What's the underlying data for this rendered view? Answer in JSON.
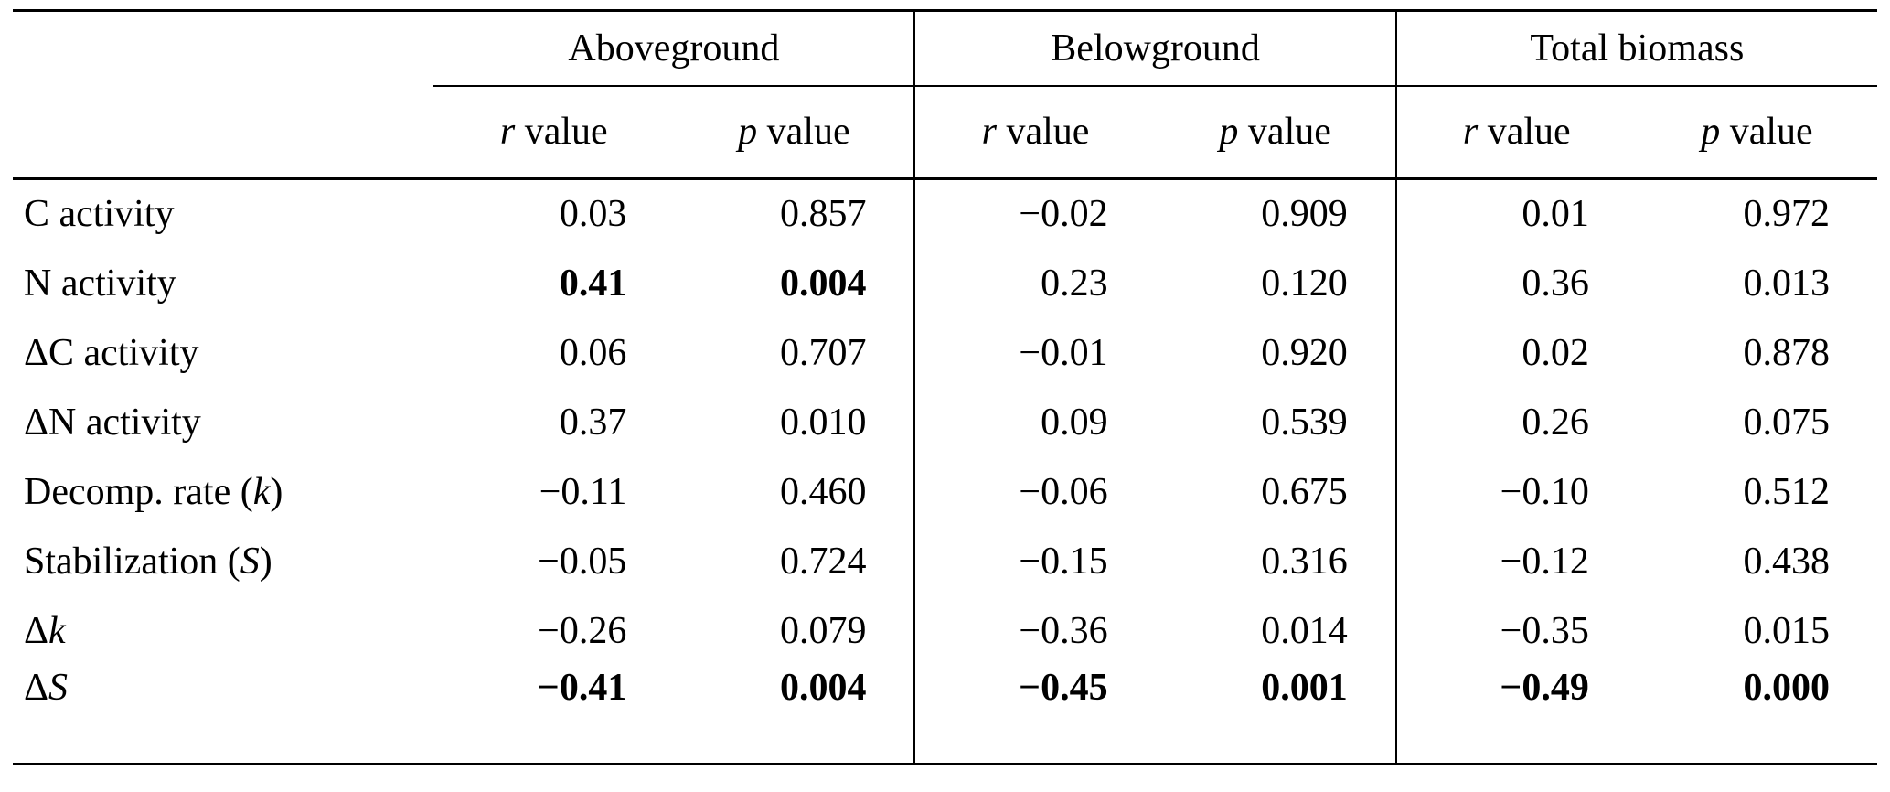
{
  "table": {
    "groups": [
      {
        "label": "Aboveground"
      },
      {
        "label": "Belowground"
      },
      {
        "label": "Total biomass"
      }
    ],
    "subheader": {
      "r": {
        "symbol": "r",
        "rest": " value"
      },
      "p": {
        "symbol": "p",
        "rest": " value"
      }
    },
    "rows": [
      {
        "label_parts": [
          {
            "t": "C activity",
            "i": false
          }
        ],
        "values": [
          {
            "v": "0.03",
            "b": false
          },
          {
            "v": "0.857",
            "b": false
          },
          {
            "v": "−0.02",
            "b": false
          },
          {
            "v": "0.909",
            "b": false
          },
          {
            "v": "0.01",
            "b": false
          },
          {
            "v": "0.972",
            "b": false
          }
        ]
      },
      {
        "label_parts": [
          {
            "t": "N activity",
            "i": false
          }
        ],
        "values": [
          {
            "v": "0.41",
            "b": true
          },
          {
            "v": "0.004",
            "b": true
          },
          {
            "v": "0.23",
            "b": false
          },
          {
            "v": "0.120",
            "b": false
          },
          {
            "v": "0.36",
            "b": false
          },
          {
            "v": "0.013",
            "b": false
          }
        ]
      },
      {
        "label_parts": [
          {
            "t": "ΔC activity",
            "i": false
          }
        ],
        "values": [
          {
            "v": "0.06",
            "b": false
          },
          {
            "v": "0.707",
            "b": false
          },
          {
            "v": "−0.01",
            "b": false
          },
          {
            "v": "0.920",
            "b": false
          },
          {
            "v": "0.02",
            "b": false
          },
          {
            "v": "0.878",
            "b": false
          }
        ]
      },
      {
        "label_parts": [
          {
            "t": "ΔN activity",
            "i": false
          }
        ],
        "values": [
          {
            "v": "0.37",
            "b": false
          },
          {
            "v": "0.010",
            "b": false
          },
          {
            "v": "0.09",
            "b": false
          },
          {
            "v": "0.539",
            "b": false
          },
          {
            "v": "0.26",
            "b": false
          },
          {
            "v": "0.075",
            "b": false
          }
        ]
      },
      {
        "label_parts": [
          {
            "t": "Decomp. rate (",
            "i": false
          },
          {
            "t": "k",
            "i": true
          },
          {
            "t": ")",
            "i": false
          }
        ],
        "values": [
          {
            "v": "−0.11",
            "b": false
          },
          {
            "v": "0.460",
            "b": false
          },
          {
            "v": "−0.06",
            "b": false
          },
          {
            "v": "0.675",
            "b": false
          },
          {
            "v": "−0.10",
            "b": false
          },
          {
            "v": "0.512",
            "b": false
          }
        ]
      },
      {
        "label_parts": [
          {
            "t": "Stabilization (",
            "i": false
          },
          {
            "t": "S",
            "i": true
          },
          {
            "t": ")",
            "i": false
          }
        ],
        "values": [
          {
            "v": "−0.05",
            "b": false
          },
          {
            "v": "0.724",
            "b": false
          },
          {
            "v": "−0.15",
            "b": false
          },
          {
            "v": "0.316",
            "b": false
          },
          {
            "v": "−0.12",
            "b": false
          },
          {
            "v": "0.438",
            "b": false
          }
        ]
      },
      {
        "label_parts": [
          {
            "t": "Δ",
            "i": false
          },
          {
            "t": "k",
            "i": true
          }
        ],
        "values": [
          {
            "v": "−0.26",
            "b": false
          },
          {
            "v": "0.079",
            "b": false
          },
          {
            "v": "−0.36",
            "b": false
          },
          {
            "v": "0.014",
            "b": false
          },
          {
            "v": "−0.35",
            "b": false
          },
          {
            "v": "0.015",
            "b": false
          }
        ]
      },
      {
        "label_parts": [
          {
            "t": "Δ",
            "i": false
          },
          {
            "t": "S",
            "i": true
          }
        ],
        "values": [
          {
            "v": "−0.41",
            "b": true
          },
          {
            "v": "0.004",
            "b": true
          },
          {
            "v": "−0.45",
            "b": true
          },
          {
            "v": "0.001",
            "b": true
          },
          {
            "v": "−0.49",
            "b": true
          },
          {
            "v": "0.000",
            "b": true
          }
        ]
      }
    ],
    "colors": {
      "text": "#000000",
      "background": "#ffffff",
      "rule": "#000000"
    }
  }
}
